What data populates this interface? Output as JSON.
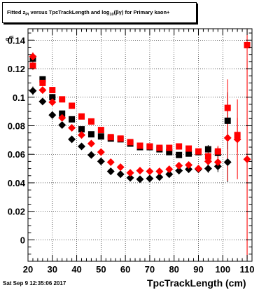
{
  "page": {
    "timestamp": "Sat Sep  9 12:35:06 2017"
  },
  "chart_data": {
    "type": "scatter",
    "title": {
      "prefix": "Fitted  z",
      "sub1": "Pi",
      "middle": " versus TpcTrackLength and log",
      "sub2": "10",
      "paren_open": "(",
      "beta_gamma": "βγ",
      "paren_close": ")",
      "suffix": " for Primary kaon+"
    },
    "xlabel": "TpcTrackLength (cm)",
    "ylabel": "σ",
    "ylabel_sup": "dE",
    "xlim": [
      20,
      112
    ],
    "ylim": [
      -0.015,
      0.148
    ],
    "xticks": [
      20,
      30,
      40,
      50,
      60,
      70,
      80,
      90,
      100,
      110
    ],
    "xtick_labels": [
      "20",
      "30",
      "40",
      "50",
      "60",
      "70",
      "80",
      "90",
      "100",
      "110"
    ],
    "yticks": [
      0,
      0.02,
      0.04,
      0.06,
      0.08,
      0.1,
      0.12,
      0.14
    ],
    "ytick_labels": [
      "0",
      "0.02",
      "0.04",
      "0.06",
      "0.08",
      "0.1",
      "0.12",
      "0.14"
    ],
    "grid": true,
    "series": [
      {
        "marker": "diamond",
        "color": "#000000",
        "points": [
          {
            "x": 22,
            "y": 0.1045,
            "err": 0.003
          },
          {
            "x": 26,
            "y": 0.097,
            "err": 0.002
          },
          {
            "x": 30,
            "y": 0.0875,
            "err": 0.002
          },
          {
            "x": 34,
            "y": 0.0805,
            "err": 0.0015
          },
          {
            "x": 38,
            "y": 0.0705,
            "err": 0.0015
          },
          {
            "x": 42,
            "y": 0.0655,
            "err": 0.001
          },
          {
            "x": 46,
            "y": 0.0595,
            "err": 0.001
          },
          {
            "x": 50,
            "y": 0.055,
            "err": 0.001
          },
          {
            "x": 54,
            "y": 0.048,
            "err": 0.001
          },
          {
            "x": 58,
            "y": 0.046,
            "err": 0.001
          },
          {
            "x": 62,
            "y": 0.0435,
            "err": 0.001
          },
          {
            "x": 66,
            "y": 0.0425,
            "err": 0.001
          },
          {
            "x": 70,
            "y": 0.043,
            "err": 0.001
          },
          {
            "x": 74,
            "y": 0.044,
            "err": 0.001
          },
          {
            "x": 78,
            "y": 0.046,
            "err": 0.001
          },
          {
            "x": 82,
            "y": 0.0485,
            "err": 0.0015
          },
          {
            "x": 86,
            "y": 0.0495,
            "err": 0.0015
          },
          {
            "x": 90,
            "y": 0.0495,
            "err": 0.002
          },
          {
            "x": 94,
            "y": 0.05,
            "err": 0.003
          },
          {
            "x": 98,
            "y": 0.0515,
            "err": 0.004
          },
          {
            "x": 102,
            "y": 0.0545,
            "err": 0.014
          }
        ]
      },
      {
        "marker": "square",
        "color": "#000000",
        "points": [
          {
            "x": 22,
            "y": 0.127,
            "err": 0.003
          },
          {
            "x": 26,
            "y": 0.1125,
            "err": 0.002
          },
          {
            "x": 30,
            "y": 0.1,
            "err": 0.002
          },
          {
            "x": 34,
            "y": 0.0885,
            "err": 0.0015
          },
          {
            "x": 38,
            "y": 0.0845,
            "err": 0.0015
          },
          {
            "x": 42,
            "y": 0.0775,
            "err": 0.001
          },
          {
            "x": 46,
            "y": 0.074,
            "err": 0.001
          },
          {
            "x": 50,
            "y": 0.0725,
            "err": 0.001
          },
          {
            "x": 54,
            "y": 0.071,
            "err": 0.001
          },
          {
            "x": 58,
            "y": 0.0705,
            "err": 0.001
          },
          {
            "x": 62,
            "y": 0.0675,
            "err": 0.001
          },
          {
            "x": 66,
            "y": 0.065,
            "err": 0.001
          },
          {
            "x": 70,
            "y": 0.065,
            "err": 0.001
          },
          {
            "x": 74,
            "y": 0.0635,
            "err": 0.001
          },
          {
            "x": 78,
            "y": 0.0615,
            "err": 0.001
          },
          {
            "x": 82,
            "y": 0.0595,
            "err": 0.0015
          },
          {
            "x": 86,
            "y": 0.0605,
            "err": 0.0015
          },
          {
            "x": 90,
            "y": 0.0615,
            "err": 0.002
          },
          {
            "x": 94,
            "y": 0.0635,
            "err": 0.003
          },
          {
            "x": 98,
            "y": 0.061,
            "err": 0.004
          },
          {
            "x": 102,
            "y": 0.0835,
            "err": 0.02
          }
        ]
      },
      {
        "marker": "diamond",
        "color": "#ff0000",
        "points": [
          {
            "x": 22,
            "y": 0.1285,
            "err": 0.003
          },
          {
            "x": 26,
            "y": 0.105,
            "err": 0.002
          },
          {
            "x": 30,
            "y": 0.0965,
            "err": 0.002
          },
          {
            "x": 34,
            "y": 0.0855,
            "err": 0.0015
          },
          {
            "x": 38,
            "y": 0.0785,
            "err": 0.0015
          },
          {
            "x": 42,
            "y": 0.0735,
            "err": 0.001
          },
          {
            "x": 46,
            "y": 0.0675,
            "err": 0.001
          },
          {
            "x": 50,
            "y": 0.0615,
            "err": 0.001
          },
          {
            "x": 54,
            "y": 0.0545,
            "err": 0.001
          },
          {
            "x": 58,
            "y": 0.051,
            "err": 0.001
          },
          {
            "x": 62,
            "y": 0.047,
            "err": 0.001
          },
          {
            "x": 66,
            "y": 0.0485,
            "err": 0.001
          },
          {
            "x": 70,
            "y": 0.048,
            "err": 0.001
          },
          {
            "x": 74,
            "y": 0.048,
            "err": 0.001
          },
          {
            "x": 78,
            "y": 0.0495,
            "err": 0.001
          },
          {
            "x": 82,
            "y": 0.052,
            "err": 0.0015
          },
          {
            "x": 86,
            "y": 0.0525,
            "err": 0.0015
          },
          {
            "x": 90,
            "y": 0.05,
            "err": 0.002
          },
          {
            "x": 94,
            "y": 0.055,
            "err": 0.003
          },
          {
            "x": 98,
            "y": 0.0545,
            "err": 0.004
          },
          {
            "x": 102,
            "y": 0.0715,
            "err": 0.03
          },
          {
            "x": 106,
            "y": 0.0705,
            "err": 0.028
          },
          {
            "x": 110,
            "y": 0.0565,
            "err": 0.07
          }
        ]
      },
      {
        "marker": "square",
        "color": "#ff0000",
        "points": [
          {
            "x": 22,
            "y": 0.122,
            "err": 0.003
          },
          {
            "x": 26,
            "y": 0.11,
            "err": 0.002
          },
          {
            "x": 30,
            "y": 0.105,
            "err": 0.002
          },
          {
            "x": 34,
            "y": 0.0985,
            "err": 0.0015
          },
          {
            "x": 38,
            "y": 0.094,
            "err": 0.0015
          },
          {
            "x": 42,
            "y": 0.0865,
            "err": 0.001
          },
          {
            "x": 46,
            "y": 0.083,
            "err": 0.001
          },
          {
            "x": 50,
            "y": 0.077,
            "err": 0.001
          },
          {
            "x": 54,
            "y": 0.072,
            "err": 0.001
          },
          {
            "x": 58,
            "y": 0.071,
            "err": 0.001
          },
          {
            "x": 62,
            "y": 0.0685,
            "err": 0.001
          },
          {
            "x": 66,
            "y": 0.066,
            "err": 0.001
          },
          {
            "x": 70,
            "y": 0.0655,
            "err": 0.001
          },
          {
            "x": 74,
            "y": 0.0645,
            "err": 0.001
          },
          {
            "x": 78,
            "y": 0.0645,
            "err": 0.001
          },
          {
            "x": 82,
            "y": 0.0655,
            "err": 0.0015
          },
          {
            "x": 86,
            "y": 0.064,
            "err": 0.0015
          },
          {
            "x": 90,
            "y": 0.062,
            "err": 0.002
          },
          {
            "x": 94,
            "y": 0.0585,
            "err": 0.003
          },
          {
            "x": 98,
            "y": 0.062,
            "err": 0.004
          },
          {
            "x": 102,
            "y": 0.0925,
            "err": 0.02
          },
          {
            "x": 106,
            "y": 0.0735,
            "err": 0.012
          },
          {
            "x": 110,
            "y": 0.1365,
            "err": 0.15
          }
        ]
      }
    ]
  }
}
